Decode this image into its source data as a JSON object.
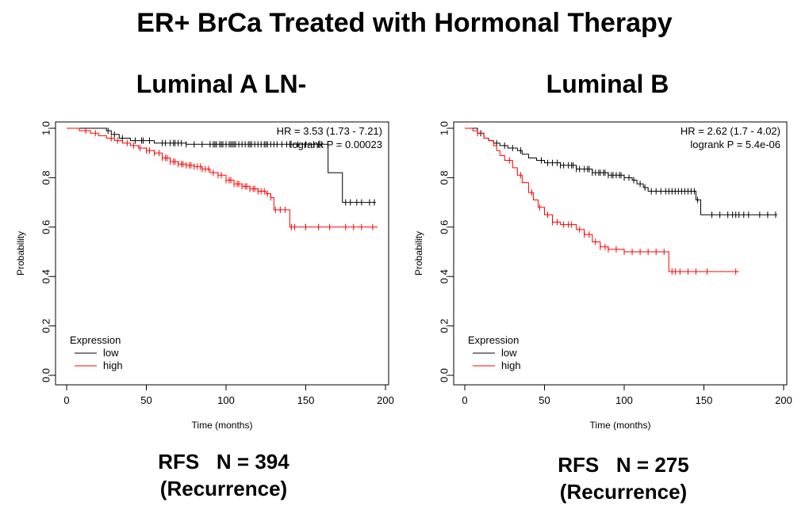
{
  "title": "ER+ BrCa Treated with Hormonal Therapy",
  "panels": [
    {
      "title": "Luminal A LN-",
      "caption_line1": "RFS   N = 394",
      "caption_line2": "(Recurrence)"
    },
    {
      "title": "Luminal B",
      "caption_line1": "RFS   N = 275",
      "caption_line2": "(Recurrence)"
    }
  ],
  "chart_data": [
    {
      "type": "line",
      "subtype": "kaplan-meier",
      "title": "Luminal A LN-",
      "xlabel": "Time (months)",
      "ylabel": "Probability",
      "xlim": [
        0,
        200
      ],
      "ylim": [
        0,
        1
      ],
      "xticks": [
        0,
        50,
        100,
        150,
        200
      ],
      "yticks": [
        0.0,
        0.2,
        0.4,
        0.6,
        0.8,
        1.0
      ],
      "ytick_labels": [
        "0.0",
        "0.2",
        "0.4",
        "0.6",
        "0.8",
        "1.0"
      ],
      "annotation_line1": "HR = 3.53 (1.73 - 7.21)",
      "annotation_line2": "logrank P = 0.00023",
      "legend_title": "Expression",
      "legend_location": "bottom-left",
      "series": [
        {
          "name": "low",
          "color": "#000000",
          "steps": [
            [
              0,
              1.0
            ],
            [
              25,
              0.99
            ],
            [
              28,
              0.975
            ],
            [
              33,
              0.96
            ],
            [
              40,
              0.95
            ],
            [
              55,
              0.94
            ],
            [
              75,
              0.935
            ],
            [
              164,
              0.935
            ],
            [
              164,
              0.82
            ],
            [
              173,
              0.82
            ],
            [
              173,
              0.7
            ],
            [
              194,
              0.7
            ]
          ],
          "censors": [
            26,
            30,
            35,
            43,
            47,
            48,
            52,
            60,
            62,
            65,
            67,
            68,
            70,
            72,
            75,
            80,
            85,
            90,
            92,
            93,
            94,
            96,
            97,
            98,
            100,
            102,
            103,
            104,
            105,
            106,
            108,
            110,
            112,
            114,
            115,
            116,
            118,
            120,
            122,
            124,
            125,
            126,
            128,
            130,
            132,
            135,
            138,
            140,
            145,
            150,
            155,
            158,
            160,
            175,
            178,
            182,
            185,
            190,
            193
          ]
        },
        {
          "name": "high",
          "color": "#ff0000",
          "steps": [
            [
              0,
              1.0
            ],
            [
              8,
              0.99
            ],
            [
              15,
              0.98
            ],
            [
              20,
              0.97
            ],
            [
              25,
              0.96
            ],
            [
              30,
              0.95
            ],
            [
              35,
              0.94
            ],
            [
              40,
              0.93
            ],
            [
              45,
              0.92
            ],
            [
              50,
              0.91
            ],
            [
              55,
              0.9
            ],
            [
              60,
              0.88
            ],
            [
              65,
              0.865
            ],
            [
              70,
              0.855
            ],
            [
              75,
              0.85
            ],
            [
              80,
              0.845
            ],
            [
              85,
              0.835
            ],
            [
              90,
              0.82
            ],
            [
              95,
              0.81
            ],
            [
              100,
              0.79
            ],
            [
              105,
              0.775
            ],
            [
              110,
              0.765
            ],
            [
              115,
              0.755
            ],
            [
              120,
              0.745
            ],
            [
              125,
              0.735
            ],
            [
              128,
              0.72
            ],
            [
              130,
              0.67
            ],
            [
              140,
              0.67
            ],
            [
              140,
              0.6
            ],
            [
              195,
              0.6
            ]
          ],
          "censors": [
            12,
            18,
            28,
            32,
            38,
            42,
            46,
            50,
            52,
            55,
            58,
            60,
            62,
            63,
            65,
            67,
            68,
            70,
            72,
            73,
            75,
            77,
            78,
            80,
            82,
            84,
            85,
            87,
            89,
            92,
            95,
            97,
            100,
            102,
            103,
            105,
            107,
            108,
            110,
            112,
            113,
            115,
            117,
            118,
            120,
            122,
            124,
            126,
            128,
            131,
            134,
            137,
            141,
            143,
            150,
            158,
            165,
            175,
            180,
            185,
            192
          ]
        }
      ]
    },
    {
      "type": "line",
      "subtype": "kaplan-meier",
      "title": "Luminal B",
      "xlabel": "Time (months)",
      "ylabel": "Probability",
      "xlim": [
        0,
        200
      ],
      "ylim": [
        0,
        1
      ],
      "xticks": [
        0,
        50,
        100,
        150,
        200
      ],
      "yticks": [
        0.0,
        0.2,
        0.4,
        0.6,
        0.8,
        1.0
      ],
      "ytick_labels": [
        "0.0",
        "0.2",
        "0.4",
        "0.6",
        "0.8",
        "1.0"
      ],
      "annotation_line1": "HR = 2.62 (1.7 - 4.02)",
      "annotation_line2": "logrank P = 5.4e-06",
      "legend_title": "Expression",
      "legend_location": "bottom-left",
      "series": [
        {
          "name": "low",
          "color": "#000000",
          "steps": [
            [
              0,
              1.0
            ],
            [
              8,
              0.98
            ],
            [
              12,
              0.96
            ],
            [
              15,
              0.95
            ],
            [
              18,
              0.94
            ],
            [
              22,
              0.93
            ],
            [
              27,
              0.92
            ],
            [
              33,
              0.91
            ],
            [
              36,
              0.895
            ],
            [
              40,
              0.88
            ],
            [
              45,
              0.87
            ],
            [
              50,
              0.86
            ],
            [
              60,
              0.85
            ],
            [
              70,
              0.835
            ],
            [
              80,
              0.82
            ],
            [
              90,
              0.81
            ],
            [
              100,
              0.8
            ],
            [
              105,
              0.79
            ],
            [
              108,
              0.775
            ],
            [
              112,
              0.76
            ],
            [
              115,
              0.745
            ],
            [
              145,
              0.745
            ],
            [
              145,
              0.71
            ],
            [
              148,
              0.71
            ],
            [
              148,
              0.65
            ],
            [
              196,
              0.65
            ]
          ],
          "censors": [
            10,
            20,
            25,
            30,
            35,
            48,
            52,
            55,
            58,
            60,
            62,
            65,
            67,
            68,
            70,
            72,
            75,
            77,
            78,
            80,
            82,
            84,
            85,
            87,
            88,
            90,
            92,
            93,
            95,
            97,
            98,
            100,
            103,
            106,
            110,
            113,
            117,
            120,
            123,
            126,
            128,
            130,
            132,
            134,
            136,
            138,
            140,
            142,
            144,
            146,
            155,
            160,
            165,
            168,
            170,
            172,
            175,
            178,
            185,
            190,
            195
          ]
        },
        {
          "name": "high",
          "color": "#ff0000",
          "steps": [
            [
              0,
              1.0
            ],
            [
              5,
              0.99
            ],
            [
              8,
              0.98
            ],
            [
              12,
              0.96
            ],
            [
              15,
              0.95
            ],
            [
              18,
              0.93
            ],
            [
              20,
              0.91
            ],
            [
              22,
              0.89
            ],
            [
              25,
              0.87
            ],
            [
              30,
              0.84
            ],
            [
              33,
              0.81
            ],
            [
              36,
              0.78
            ],
            [
              40,
              0.74
            ],
            [
              43,
              0.71
            ],
            [
              46,
              0.68
            ],
            [
              50,
              0.65
            ],
            [
              55,
              0.62
            ],
            [
              60,
              0.61
            ],
            [
              70,
              0.59
            ],
            [
              75,
              0.57
            ],
            [
              80,
              0.54
            ],
            [
              85,
              0.52
            ],
            [
              90,
              0.51
            ],
            [
              100,
              0.5
            ],
            [
              128,
              0.5
            ],
            [
              128,
              0.42
            ],
            [
              172,
              0.42
            ]
          ],
          "censors": [
            8,
            28,
            35,
            42,
            47,
            52,
            55,
            58,
            62,
            65,
            67,
            72,
            75,
            78,
            82,
            85,
            88,
            90,
            95,
            100,
            105,
            110,
            115,
            120,
            125,
            130,
            132,
            135,
            140,
            145,
            152,
            170
          ]
        }
      ]
    }
  ]
}
